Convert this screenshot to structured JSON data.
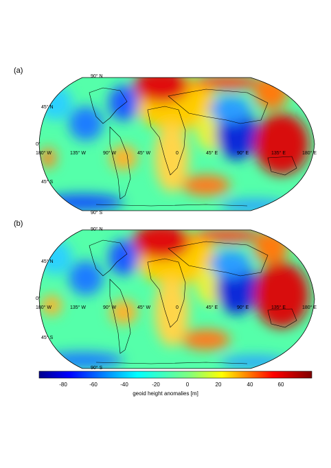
{
  "panels": [
    {
      "label": "(a)",
      "lat_labels": [
        "90° N",
        "45° N",
        "0°",
        "45° S",
        "90° S"
      ],
      "lon_labels": [
        "180° W",
        "135° W",
        "90° W",
        "45° W",
        "0",
        "45° E",
        "90° E",
        "135° E",
        "180° E"
      ]
    },
    {
      "label": "(b)",
      "lat_labels": [
        "90° N",
        "45° N",
        "0°",
        "45° S",
        "90° S"
      ],
      "lon_labels": [
        "180° W",
        "135° W",
        "90° W",
        "45° W",
        "0",
        "45° E",
        "90° E",
        "135° E",
        "180° E"
      ]
    }
  ],
  "colorbar": {
    "label": "geoid height anomalies [m]",
    "ticks": [
      "-80",
      "-60",
      "-40",
      "-20",
      "0",
      "20",
      "40",
      "60"
    ],
    "min": -100,
    "max": 80,
    "colormap": "jet"
  },
  "colors": {
    "low": "#00008f",
    "mid": "#7fff7f",
    "high": "#800000"
  }
}
